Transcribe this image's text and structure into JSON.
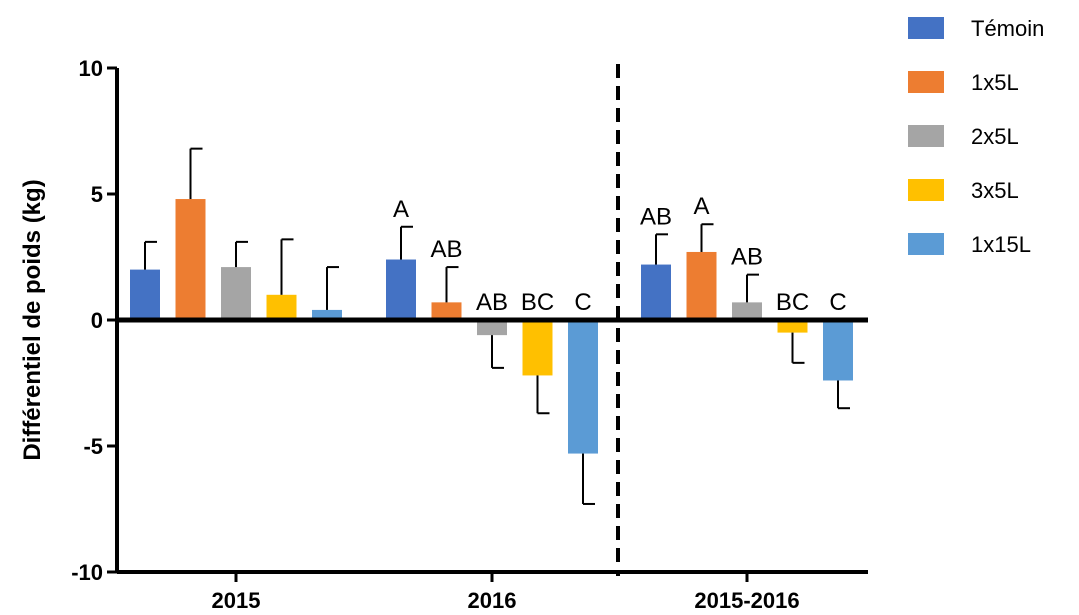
{
  "chart_data": {
    "type": "bar",
    "title": "",
    "ylabel": "Différentiel de poids (kg)",
    "xlabel": "",
    "ylim": [
      -10,
      10
    ],
    "yticks": [
      10,
      5,
      0,
      -5,
      -10
    ],
    "ytick_labels": [
      "10",
      "5",
      "0",
      "-5",
      "-10"
    ],
    "categories": [
      "2015",
      "2016",
      "2015-2016"
    ],
    "series": [
      {
        "name": "Témoin",
        "color": "#4472C4",
        "values": [
          2.0,
          2.4,
          2.2
        ],
        "errors": [
          1.1,
          1.3,
          1.2
        ]
      },
      {
        "name": "1x5L",
        "color": "#ED7D31",
        "values": [
          4.8,
          0.7,
          2.7
        ],
        "errors": [
          2.0,
          1.4,
          1.1
        ]
      },
      {
        "name": "2x5L",
        "color": "#A5A5A5",
        "values": [
          2.1,
          -0.6,
          0.7
        ],
        "errors": [
          1.0,
          1.3,
          1.1
        ]
      },
      {
        "name": "3x5L",
        "color": "#FFC000",
        "values": [
          1.0,
          -2.2,
          -0.5
        ],
        "errors": [
          2.2,
          1.5,
          1.2
        ]
      },
      {
        "name": "1x15L",
        "color": "#5B9BD5",
        "values": [
          0.4,
          -5.3,
          -2.4
        ],
        "errors": [
          1.7,
          2.0,
          1.1
        ]
      }
    ],
    "annotations": [
      [
        "",
        "",
        "",
        "",
        ""
      ],
      [
        "A",
        "AB",
        "AB",
        "BC",
        "C"
      ],
      [
        "AB",
        "A",
        "AB",
        "BC",
        "C"
      ]
    ],
    "separator_after_category": "2016",
    "legend_position": "top-right",
    "grid": false
  }
}
